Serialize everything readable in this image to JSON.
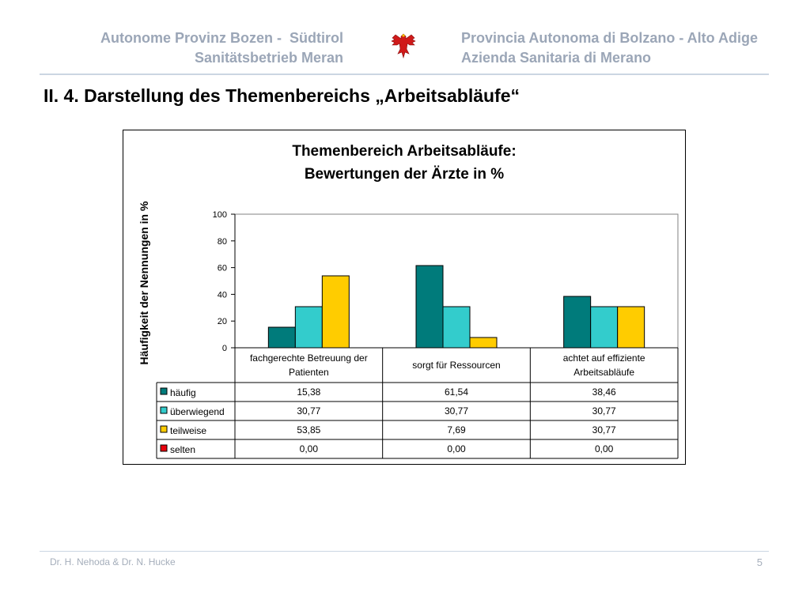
{
  "header": {
    "left_line1": "Autonome Provinz Bozen -  Südtirol",
    "left_line2": "Sanitätsbetrieb Meran",
    "right_line1": "Provincia Autonoma di Bolzano - Alto Adige",
    "right_line2": "Azienda Sanitaria di Merano",
    "logo_icon": "eagle-coat-of-arms-icon"
  },
  "slide": {
    "title": "II. 4. Darstellung des Themenbereichs „Arbeitsabläufe“"
  },
  "footer": {
    "authors": "Dr. H. Nehoda & Dr. N. Hucke",
    "page_number": "5"
  },
  "chart_data": {
    "type": "bar",
    "title_line1": "Themenbereich Arbeitsabläufe:",
    "title_line2": "Bewertungen der Ärzte in %",
    "xlabel": "",
    "ylabel": "Häufigkeit der Nennungen in %",
    "ylim": [
      0,
      100
    ],
    "yticks": [
      0,
      20,
      40,
      60,
      80,
      100
    ],
    "grid": false,
    "legend": "data-table-below",
    "categories": [
      [
        "fachgerechte Betreuung der",
        "Patienten"
      ],
      [
        "sorgt für Ressourcen"
      ],
      [
        "achtet auf effiziente",
        "Arbeitsabläufe"
      ]
    ],
    "series": [
      {
        "name": "häufig",
        "color": "#007b7b",
        "values": [
          15.38,
          61.54,
          38.46
        ],
        "labels": [
          "15,38",
          "61,54",
          "38,46"
        ]
      },
      {
        "name": "überwiegend",
        "color": "#33cccc",
        "values": [
          30.77,
          30.77,
          30.77
        ],
        "labels": [
          "30,77",
          "30,77",
          "30,77"
        ]
      },
      {
        "name": "teilweise",
        "color": "#ffcc00",
        "values": [
          53.85,
          7.69,
          30.77
        ],
        "labels": [
          "53,85",
          "7,69",
          "30,77"
        ]
      },
      {
        "name": "selten",
        "color": "#e8000b",
        "values": [
          0,
          0,
          0
        ],
        "labels": [
          "0,00",
          "0,00",
          "0,00"
        ]
      }
    ]
  }
}
